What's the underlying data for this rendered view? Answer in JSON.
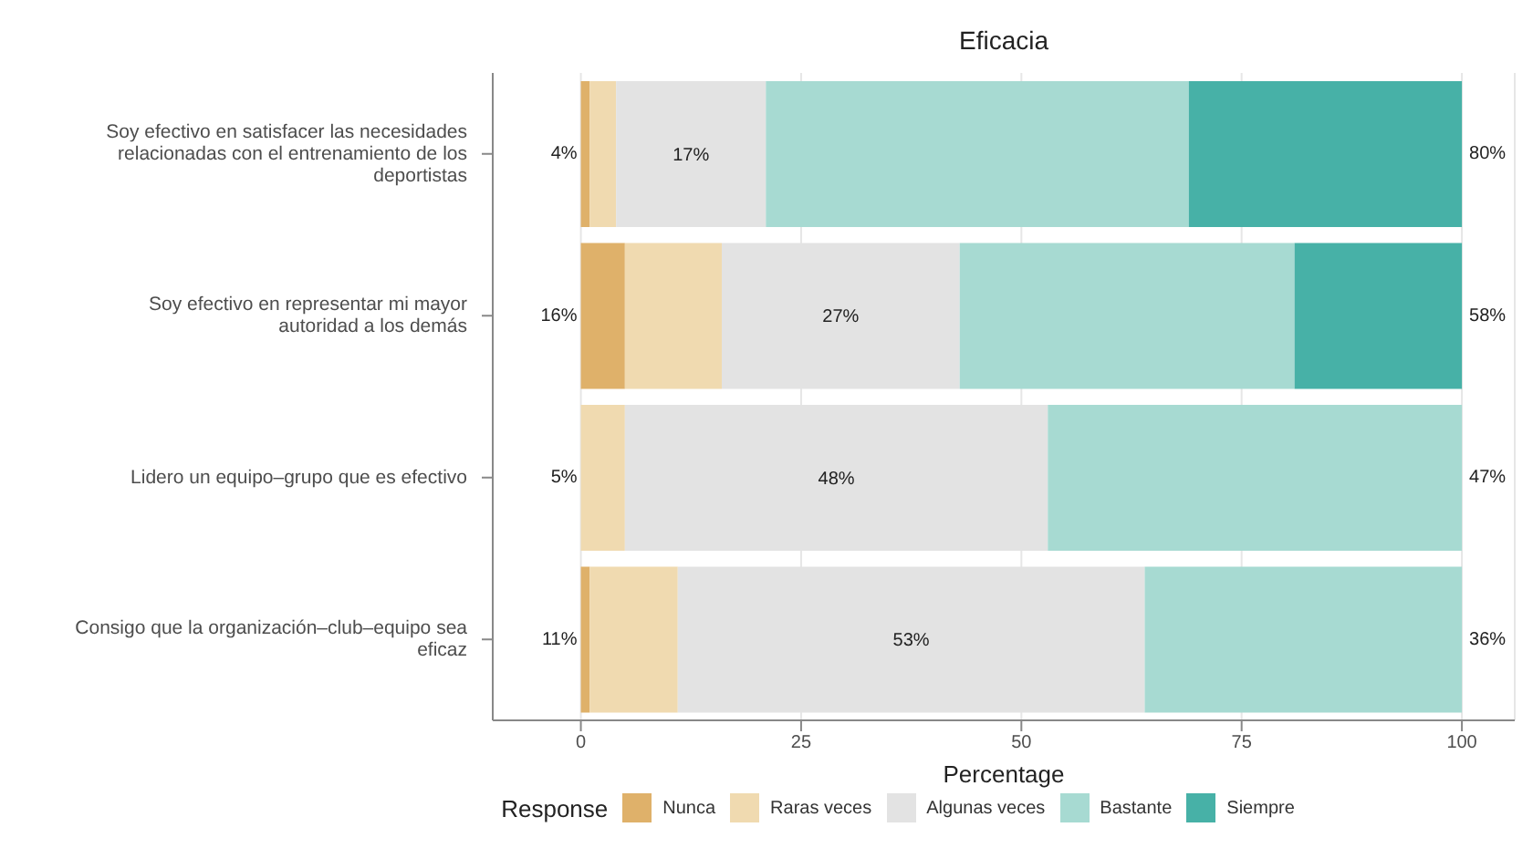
{
  "chart_data": {
    "type": "bar",
    "orientation": "horizontal",
    "stacked": true,
    "title": "Eficacia",
    "xlabel": "Percentage",
    "legend_title": "Response",
    "categories": [
      "Soy efectivo en satisfacer las necesidades relacionadas con el entrenamiento de los deportistas",
      "Soy efectivo en representar mi mayor autoridad a los demás",
      "Lidero un equipo–grupo que es efectivo",
      "Consigo que la organización–club–equipo sea eficaz"
    ],
    "series": [
      {
        "name": "Nunca",
        "color": "#dfb16a",
        "values": [
          1,
          5,
          0,
          1
        ]
      },
      {
        "name": "Raras veces",
        "color": "#f0dab0",
        "values": [
          3,
          11,
          5,
          10
        ]
      },
      {
        "name": "Algunas veces",
        "color": "#e3e3e3",
        "values": [
          17,
          27,
          48,
          53
        ],
        "value_labels": [
          "17%",
          "27%",
          "48%",
          "53%"
        ]
      },
      {
        "name": "Bastante",
        "color": "#a7dad2",
        "values": [
          48,
          38,
          47,
          36
        ]
      },
      {
        "name": "Siempre",
        "color": "#47b1a7",
        "values": [
          31,
          19,
          0,
          0
        ]
      }
    ],
    "xlim": [
      -10,
      106
    ],
    "xticks": [
      0,
      25,
      50,
      75,
      100
    ],
    "grid": "x",
    "legend": "bottom",
    "annotations": [
      "4%",
      "80%",
      "16%",
      "58%",
      "5%",
      "47%",
      "11%",
      "36%"
    ]
  }
}
